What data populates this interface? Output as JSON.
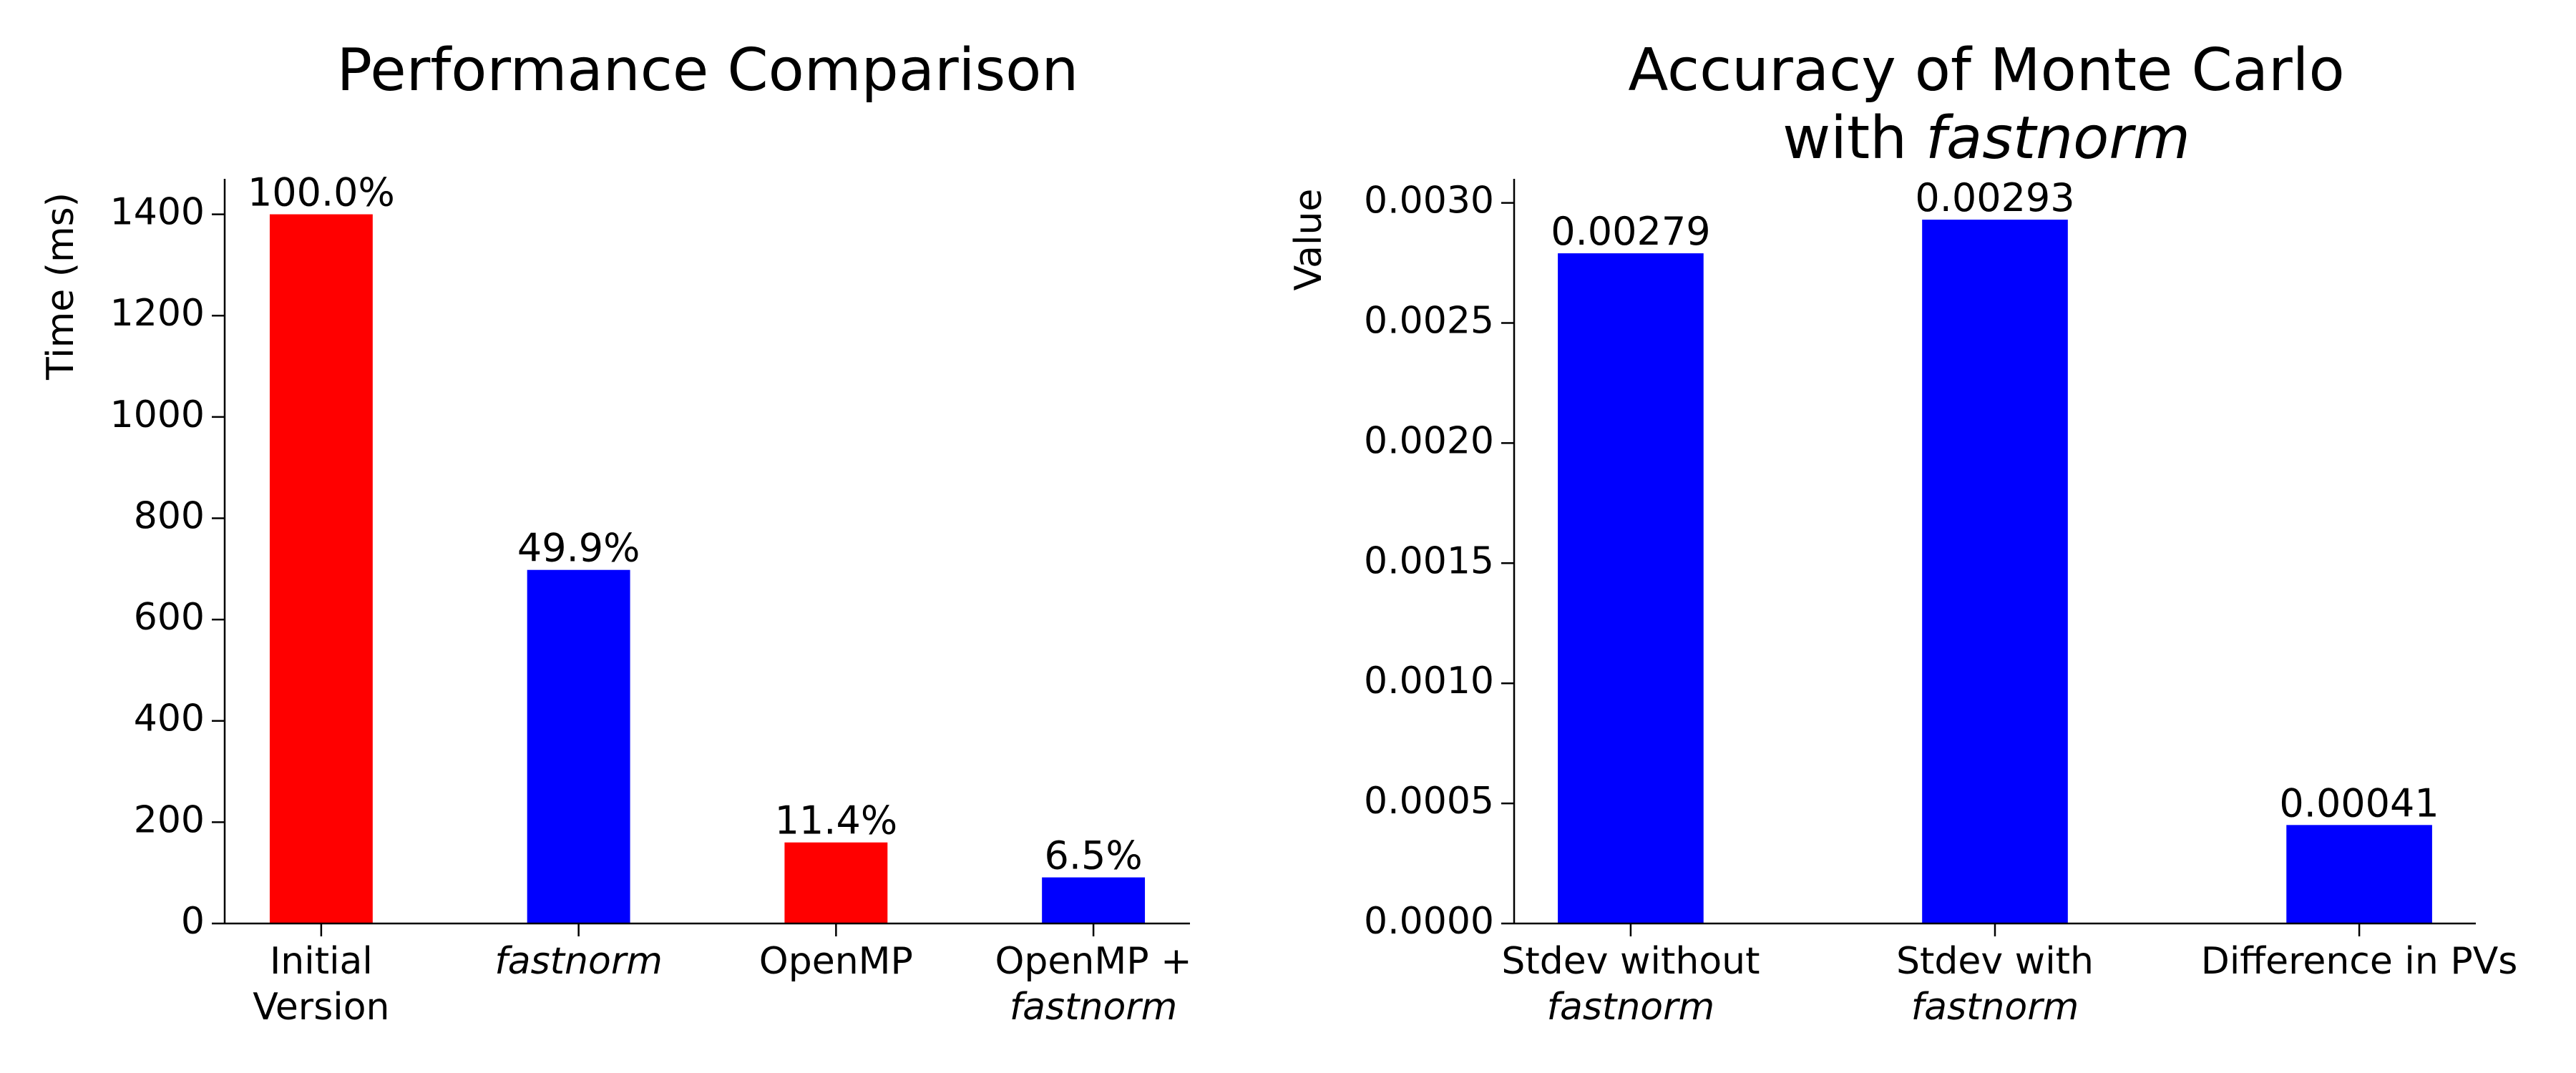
{
  "emphasis": "fastnorm",
  "chart_data": [
    {
      "type": "bar",
      "title": "Performance Comparison",
      "ylabel": "Time (ms)",
      "categories": [
        "Initial\nVersion",
        "fastnorm",
        "OpenMP",
        "OpenMP +\nfastnorm"
      ],
      "values": [
        1400,
        698,
        160,
        91
      ],
      "value_labels": [
        "100.0%",
        "49.9%",
        "11.4%",
        "6.5%"
      ],
      "colors": [
        "#ff0000",
        "#0000ff",
        "#ff0000",
        "#0000ff"
      ],
      "ylim": [
        0,
        1470
      ],
      "yticks": [
        0,
        200,
        400,
        600,
        800,
        1000,
        1200,
        1400
      ],
      "grid": false
    },
    {
      "type": "bar",
      "title": "Accuracy of Monte Carlo\nwith fastnorm",
      "ylabel": "Value",
      "categories": [
        "Stdev without\nfastnorm",
        "Stdev with\nfastnorm",
        "Difference in PVs"
      ],
      "values": [
        0.00279,
        0.00293,
        0.00041
      ],
      "value_labels": [
        "0.00279",
        "0.00293",
        "0.00041"
      ],
      "colors": [
        "#0000ff",
        "#0000ff",
        "#0000ff"
      ],
      "ylim": [
        0,
        0.0031
      ],
      "yticks": [
        {
          "value": 0,
          "label": "0.0000"
        },
        {
          "value": 0.0005,
          "label": "0.0005"
        },
        {
          "value": 0.001,
          "label": "0.0010"
        },
        {
          "value": 0.0015,
          "label": "0.0015"
        },
        {
          "value": 0.002,
          "label": "0.0020"
        },
        {
          "value": 0.0025,
          "label": "0.0025"
        },
        {
          "value": 0.003,
          "label": "0.0030"
        }
      ],
      "grid": false
    }
  ]
}
